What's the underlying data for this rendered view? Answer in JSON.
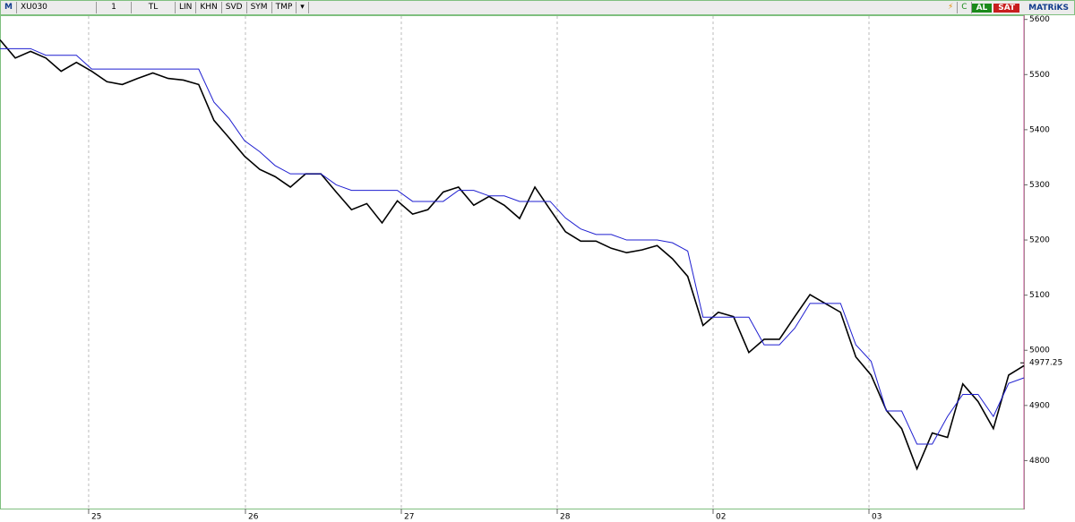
{
  "toolbar": {
    "menu": "M",
    "symbol": "XU030",
    "period": "1",
    "currency": "TL",
    "buttons": [
      "LIN",
      "KHN",
      "SVD",
      "SYM",
      "TMP"
    ],
    "connection": "C",
    "buy": "AL",
    "sell": "SAT",
    "brand": "MATRiKS"
  },
  "chart_data": {
    "type": "line",
    "xlim": [
      0,
      67
    ],
    "xticks": [
      {
        "value": 5.8,
        "label": "25"
      },
      {
        "value": 16.06,
        "label": "26"
      },
      {
        "value": 26.26,
        "label": "27"
      },
      {
        "value": 36.46,
        "label": "28"
      },
      {
        "value": 46.66,
        "label": "02"
      },
      {
        "value": 56.86,
        "label": "03"
      }
    ],
    "ylim": [
      4713,
      5606
    ],
    "yticks": [
      4800,
      4900,
      5000,
      5100,
      5200,
      5300,
      5400,
      5500,
      5600
    ],
    "grid": true,
    "last_price": {
      "value": 4977.25,
      "label": "4977.25"
    },
    "series": [
      {
        "color": "#000000",
        "values": [
          5563,
          5530,
          5542,
          5530,
          5506,
          5522,
          5506,
          5487,
          5482,
          5493,
          5503,
          5493,
          5490,
          5482,
          5417,
          5385,
          5352,
          5328,
          5315,
          5296,
          5320,
          5320,
          5287,
          5255,
          5266,
          5231,
          5271,
          5247,
          5255,
          5287,
          5296,
          5263,
          5279,
          5263,
          5239,
          5296,
          5255,
          5215,
          5198,
          5198,
          5185,
          5177,
          5182,
          5190,
          5166,
          5134,
          5045,
          5069,
          5061,
          4996,
          5020,
          5020,
          5061,
          5101,
          5085,
          5069,
          4988,
          4955,
          4891,
          4858,
          4785,
          4850,
          4842,
          4939,
          4907,
          4858,
          4955,
          4972
        ]
      },
      {
        "color": "#1f1fd0",
        "values": [
          5547,
          5547,
          5547,
          5535,
          5535,
          5535,
          5510,
          5510,
          5510,
          5510,
          5510,
          5510,
          5510,
          5510,
          5450,
          5420,
          5380,
          5360,
          5335,
          5320,
          5320,
          5320,
          5300,
          5290,
          5290,
          5290,
          5290,
          5270,
          5270,
          5270,
          5290,
          5290,
          5280,
          5280,
          5270,
          5270,
          5270,
          5240,
          5220,
          5210,
          5210,
          5200,
          5200,
          5200,
          5195,
          5180,
          5060,
          5060,
          5060,
          5060,
          5010,
          5010,
          5040,
          5085,
          5085,
          5085,
          5010,
          4980,
          4890,
          4890,
          4830,
          4830,
          4880,
          4920,
          4920,
          4880,
          4940,
          4950
        ]
      }
    ]
  }
}
